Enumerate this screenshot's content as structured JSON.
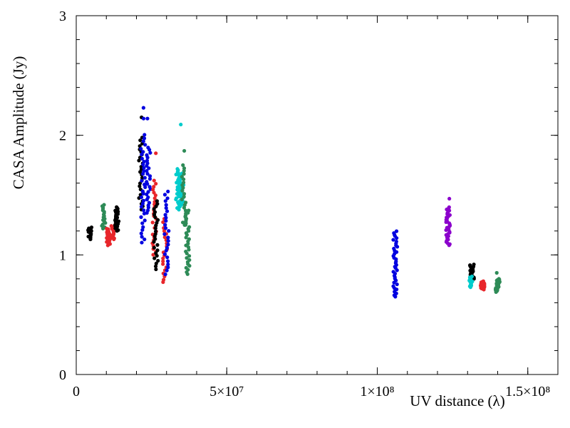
{
  "chart_data": {
    "type": "scatter",
    "title": "",
    "xlabel": "UV distance (λ)",
    "ylabel": "CASA Amplitude (Jy)",
    "xlim": [
      0,
      160000000
    ],
    "ylim": [
      0,
      3
    ],
    "grid": false,
    "x_ticks": [
      {
        "value": 0,
        "label": "0"
      },
      {
        "value": 50000000,
        "label": "5×10⁷"
      },
      {
        "value": 100000000,
        "label": "1×10⁸"
      },
      {
        "value": 150000000,
        "label": "1.5×10⁸"
      }
    ],
    "y_ticks": [
      {
        "value": 0,
        "label": "0"
      },
      {
        "value": 1,
        "label": "1"
      },
      {
        "value": 2,
        "label": "2"
      },
      {
        "value": 3,
        "label": "3"
      }
    ],
    "x_minor_step": 10000000,
    "y_minor_step": 0.2,
    "colors": {
      "black": "#000000",
      "seagreen": "#2e8b57",
      "red": "#e8262b",
      "blue": "#0000e0",
      "cyan": "#00cccc",
      "purple": "#8b00cc"
    },
    "series": [
      {
        "name": "cluster-1",
        "color": "black",
        "x": 4500000,
        "y_min": 1.13,
        "y_max": 1.23,
        "n": 14,
        "outliers": []
      },
      {
        "name": "cluster-2",
        "color": "seagreen",
        "x": 9000000,
        "y_min": 1.22,
        "y_max": 1.42,
        "n": 18,
        "outliers": []
      },
      {
        "name": "cluster-3",
        "color": "red",
        "x": 10800000,
        "y_min": 1.08,
        "y_max": 1.22,
        "n": 26,
        "outliers": []
      },
      {
        "name": "cluster-4",
        "color": "red",
        "x": 12200000,
        "y_min": 1.13,
        "y_max": 1.25,
        "n": 16,
        "outliers": []
      },
      {
        "name": "cluster-5",
        "color": "black",
        "x": 13500000,
        "y_min": 1.2,
        "y_max": 1.4,
        "n": 28,
        "outliers": []
      },
      {
        "name": "cluster-6",
        "color": "black",
        "x": 21500000,
        "y_min": 1.38,
        "y_max": 1.98,
        "n": 26,
        "outliers": [
          2.15
        ]
      },
      {
        "name": "cluster-7",
        "color": "blue",
        "x": 22200000,
        "y_min": 1.1,
        "y_max": 2.0,
        "n": 34,
        "outliers": [
          2.23,
          2.14
        ]
      },
      {
        "name": "cluster-8",
        "color": "blue",
        "x": 24000000,
        "y_min": 1.35,
        "y_max": 1.9,
        "n": 26,
        "outliers": [
          2.14
        ]
      },
      {
        "name": "cluster-9",
        "color": "red",
        "x": 26000000,
        "y_min": 1.0,
        "y_max": 1.62,
        "n": 26,
        "outliers": [
          1.85
        ]
      },
      {
        "name": "cluster-10",
        "color": "black",
        "x": 26500000,
        "y_min": 0.88,
        "y_max": 1.45,
        "n": 26,
        "outliers": []
      },
      {
        "name": "cluster-11",
        "color": "red",
        "x": 29500000,
        "y_min": 0.77,
        "y_max": 1.3,
        "n": 22,
        "outliers": []
      },
      {
        "name": "cluster-12",
        "color": "blue",
        "x": 30000000,
        "y_min": 0.84,
        "y_max": 1.53,
        "n": 26,
        "outliers": []
      },
      {
        "name": "cluster-13",
        "color": "cyan",
        "x": 33800000,
        "y_min": 1.38,
        "y_max": 1.72,
        "n": 30,
        "outliers": []
      },
      {
        "name": "cluster-14",
        "color": "cyan",
        "x": 35000000,
        "y_min": 1.42,
        "y_max": 1.68,
        "n": 20,
        "outliers": [
          2.09
        ]
      },
      {
        "name": "cluster-15",
        "color": "seagreen",
        "x": 35800000,
        "y_min": 1.25,
        "y_max": 1.75,
        "n": 22,
        "outliers": [
          1.87
        ]
      },
      {
        "name": "cluster-16",
        "color": "seagreen",
        "x": 37000000,
        "y_min": 0.84,
        "y_max": 1.37,
        "n": 32,
        "outliers": []
      },
      {
        "name": "cluster-17",
        "color": "blue",
        "x": 106000000,
        "y_min": 0.65,
        "y_max": 1.2,
        "n": 38,
        "outliers": []
      },
      {
        "name": "cluster-18",
        "color": "purple",
        "x": 123500000,
        "y_min": 1.08,
        "y_max": 1.4,
        "n": 34,
        "outliers": [
          1.47
        ]
      },
      {
        "name": "cluster-19",
        "color": "black",
        "x": 131500000,
        "y_min": 0.8,
        "y_max": 0.92,
        "n": 22,
        "outliers": []
      },
      {
        "name": "cluster-20",
        "color": "cyan",
        "x": 131000000,
        "y_min": 0.73,
        "y_max": 0.82,
        "n": 14,
        "outliers": []
      },
      {
        "name": "cluster-21",
        "color": "red",
        "x": 135000000,
        "y_min": 0.71,
        "y_max": 0.78,
        "n": 16,
        "outliers": []
      },
      {
        "name": "cluster-22",
        "color": "seagreen",
        "x": 140000000,
        "y_min": 0.69,
        "y_max": 0.8,
        "n": 24,
        "outliers": [
          0.85
        ]
      }
    ]
  }
}
